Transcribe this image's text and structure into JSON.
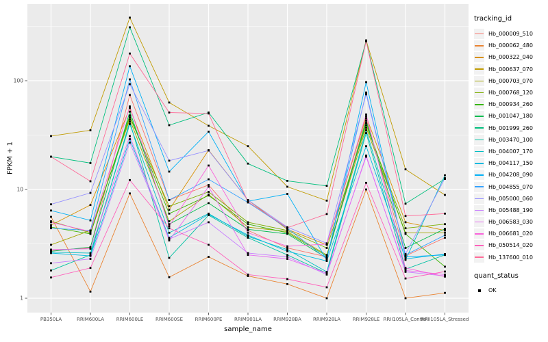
{
  "figure": {
    "background": "#FFFFFF",
    "panel_bg": "#EBEBEB",
    "grid_color": "#FFFFFF",
    "axis_text_color": "#4D4D4D",
    "tick_color": "#333333",
    "point_color": "#000000",
    "legend_key_bg": "#F2F2F2"
  },
  "axes": {
    "y_title": "FPKM + 1",
    "x_title": "sample_name",
    "y_tick_labels": [
      "1",
      "10",
      "100"
    ]
  },
  "legend": {
    "tracking_title": "tracking_id",
    "quant_title": "quant_status",
    "quant_items": [
      {
        "label": "OK",
        "marker": "black-square-point"
      }
    ]
  },
  "chart_data": {
    "type": "line",
    "title": "",
    "xlabel": "sample_name",
    "ylabel": "FPKM + 1",
    "y_scale": "log10",
    "y_ticks": [
      1,
      10,
      100
    ],
    "y_minor_ticks": [
      3.1623,
      31.623,
      316.23
    ],
    "ylim": [
      0.74,
      500
    ],
    "grid": true,
    "legend_position": "right",
    "marker": "filled-black-square",
    "categories": [
      "PB350LA",
      "RRIM600LA",
      "RRIM600LE",
      "RRIM600SE",
      "RRIM600PE",
      "RRIM901LA",
      "RRIM928BA",
      "RRIM928LA",
      "RRIM928LE",
      "RRII105LA_Control",
      "RRII105LA_Stressed"
    ],
    "series": [
      {
        "name": "Hb_000009_510",
        "color": "#F8766D",
        "values": [
          2.75,
          2.9,
          74,
          8.0,
          11.0,
          4.2,
          2.9,
          2.4,
          45,
          2.45,
          3.6
        ]
      },
      {
        "name": "Hb_000062_480",
        "color": "#EA8331",
        "values": [
          5.6,
          1.15,
          9.2,
          1.56,
          2.4,
          1.6,
          1.35,
          1.0,
          10,
          1.0,
          1.12
        ]
      },
      {
        "name": "Hb_000322_040",
        "color": "#D89000",
        "values": [
          4.7,
          7.2,
          56,
          6.5,
          23,
          8.0,
          4.3,
          3.1,
          47,
          5.0,
          4.2
        ]
      },
      {
        "name": "Hb_000637_070",
        "color": "#C09B00",
        "values": [
          31,
          35,
          380,
          63,
          38.5,
          25,
          10.6,
          7.9,
          235,
          15.3,
          8.9
        ]
      },
      {
        "name": "Hb_000703_070",
        "color": "#A3A500",
        "values": [
          3.1,
          4.2,
          44,
          5.1,
          9.0,
          4.5,
          4.1,
          2.5,
          37,
          4.0,
          4.0
        ]
      },
      {
        "name": "Hb_000768_120",
        "color": "#7CAE00",
        "values": [
          5.1,
          4.0,
          46,
          7.0,
          9.5,
          5.0,
          4.2,
          2.9,
          39,
          4.4,
          4.8
        ]
      },
      {
        "name": "Hb_000934_260",
        "color": "#39B600",
        "values": [
          4.5,
          3.9,
          48,
          6.0,
          8.8,
          4.8,
          4.0,
          2.45,
          41,
          3.9,
          1.95
        ]
      },
      {
        "name": "Hb_001047_180",
        "color": "#00BB4E",
        "values": [
          2.7,
          2.95,
          52,
          4.8,
          7.5,
          4.3,
          3.9,
          2.35,
          43,
          2.9,
          4.35
        ]
      },
      {
        "name": "Hb_001999_260",
        "color": "#00BF7D",
        "values": [
          20,
          17.5,
          310,
          39,
          51,
          17.3,
          12,
          10.8,
          232,
          7.4,
          12.5
        ]
      },
      {
        "name": "Hb_003470_100",
        "color": "#00C1A3",
        "values": [
          1.8,
          2.5,
          42,
          2.35,
          5.8,
          3.6,
          2.5,
          1.7,
          33,
          1.85,
          2.5
        ]
      },
      {
        "name": "Hb_004007_170",
        "color": "#00BFC4",
        "values": [
          2.65,
          2.6,
          40,
          4.0,
          6.0,
          3.7,
          2.8,
          1.75,
          35,
          2.25,
          13.5
        ]
      },
      {
        "name": "Hb_004117_150",
        "color": "#00BAE0",
        "values": [
          2.6,
          2.45,
          29,
          3.6,
          5.9,
          3.8,
          2.7,
          2.2,
          25,
          2.3,
          2.55
        ]
      },
      {
        "name": "Hb_004208_090",
        "color": "#00B0F6",
        "values": [
          6.4,
          5.2,
          136,
          14.6,
          34,
          7.8,
          9.1,
          2.25,
          97,
          2.4,
          2.5
        ]
      },
      {
        "name": "Hb_004855_070",
        "color": "#35A2FF",
        "values": [
          4.4,
          4.2,
          103,
          8.0,
          12.4,
          7.6,
          4.4,
          2.3,
          78,
          2.5,
          3.8
        ]
      },
      {
        "name": "Hb_005000_060",
        "color": "#9590FF",
        "values": [
          7.3,
          9.3,
          93,
          18.4,
          22.8,
          8.0,
          4.5,
          3.2,
          75,
          2.55,
          12.7
        ]
      },
      {
        "name": "Hb_005488_190",
        "color": "#C77CFF",
        "values": [
          2.1,
          2.3,
          27,
          3.5,
          5.0,
          2.6,
          2.4,
          1.65,
          20.5,
          1.75,
          1.6
        ]
      },
      {
        "name": "Hb_006583_030",
        "color": "#E76BF3",
        "values": [
          2.8,
          2.85,
          31,
          3.4,
          10.6,
          2.5,
          2.3,
          1.7,
          20,
          1.8,
          1.65
        ]
      },
      {
        "name": "Hb_006681_020",
        "color": "#FA62DB",
        "values": [
          5.0,
          4.1,
          58,
          4.6,
          16.6,
          4.0,
          3.0,
          3.15,
          49,
          1.9,
          1.58
        ]
      },
      {
        "name": "Hb_050514_020",
        "color": "#FF62BC",
        "values": [
          1.55,
          1.9,
          12.2,
          4.4,
          3.1,
          1.65,
          1.5,
          1.26,
          11.5,
          1.52,
          1.76
        ]
      },
      {
        "name": "Hb_137600_010",
        "color": "#FF6A98",
        "values": [
          20,
          11.9,
          178,
          51,
          50,
          7.7,
          4.45,
          5.95,
          230,
          5.7,
          6.0
        ]
      }
    ]
  }
}
